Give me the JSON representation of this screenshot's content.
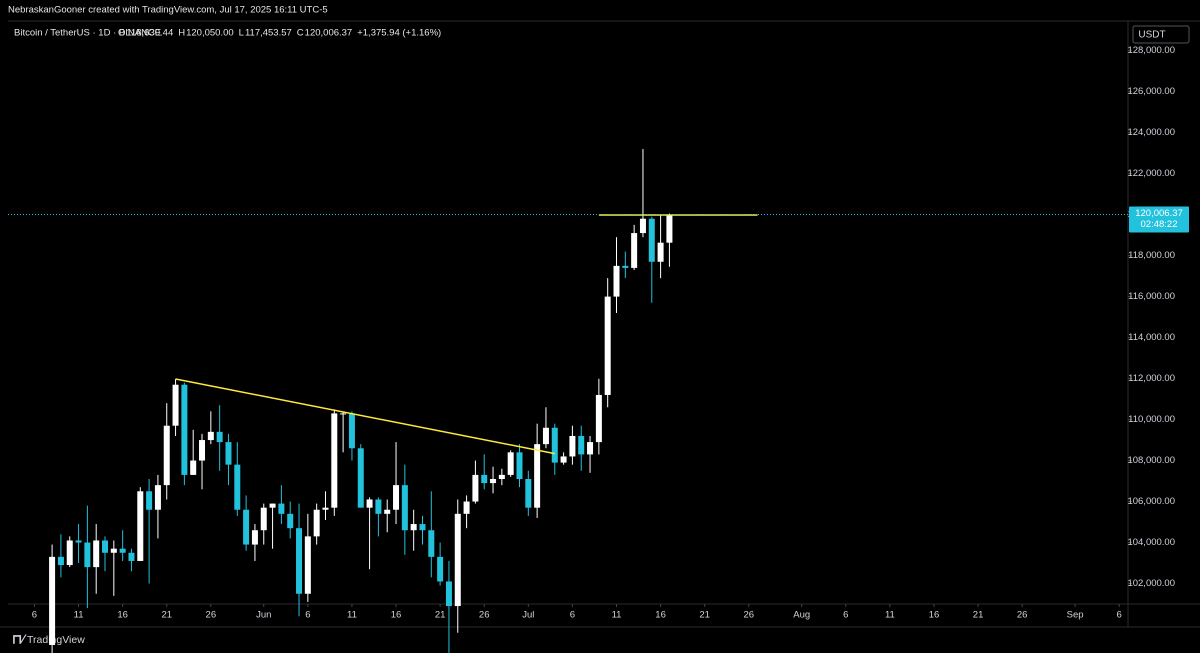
{
  "header": {
    "attribution": "NebraskanGooner created with TradingView.com, Jul 17, 2025 16:11 UTC-5",
    "symbol": "Bitcoin / TetherUS · 1D · BINANCE",
    "ohlc": [
      {
        "key": "O",
        "value": "118,630.44"
      },
      {
        "key": "H",
        "value": "120,050.00"
      },
      {
        "key": "L",
        "value": "117,453.57"
      },
      {
        "key": "C",
        "value": "120,006.37"
      }
    ],
    "change": "+1,375.94 (+1.16%)",
    "currency": "USDT",
    "countdown": "02:48:22"
  },
  "footer": {
    "brand": "TradingView"
  },
  "chart_data": {
    "type": "candlestick",
    "up_color": "#ffffff",
    "down_color": "#22c1dc",
    "x": [
      "2025-05-08",
      "2025-05-09",
      "2025-05-10",
      "2025-05-11",
      "2025-05-12",
      "2025-05-13",
      "2025-05-14",
      "2025-05-15",
      "2025-05-16",
      "2025-05-17",
      "2025-05-18",
      "2025-05-19",
      "2025-05-20",
      "2025-05-21",
      "2025-05-22",
      "2025-05-23",
      "2025-05-24",
      "2025-05-25",
      "2025-05-26",
      "2025-05-27",
      "2025-05-28",
      "2025-05-29",
      "2025-05-30",
      "2025-05-31",
      "2025-06-01",
      "2025-06-02",
      "2025-06-03",
      "2025-06-04",
      "2025-06-05",
      "2025-06-06",
      "2025-06-07",
      "2025-06-08",
      "2025-06-09",
      "2025-06-10",
      "2025-06-11",
      "2025-06-12",
      "2025-06-13",
      "2025-06-14",
      "2025-06-15",
      "2025-06-16",
      "2025-06-17",
      "2025-06-18",
      "2025-06-19",
      "2025-06-20",
      "2025-06-21",
      "2025-06-22",
      "2025-06-23",
      "2025-06-24",
      "2025-06-25",
      "2025-06-26",
      "2025-06-27",
      "2025-06-28",
      "2025-06-29",
      "2025-06-30",
      "2025-07-01",
      "2025-07-02",
      "2025-07-03",
      "2025-07-04",
      "2025-07-05",
      "2025-07-06",
      "2025-07-07",
      "2025-07-08",
      "2025-07-09",
      "2025-07-10",
      "2025-07-11",
      "2025-07-12",
      "2025-07-13",
      "2025-07-14",
      "2025-07-15",
      "2025-07-16",
      "2025-07-17"
    ],
    "open": [
      99000,
      103300,
      102900,
      104100,
      104000,
      102800,
      104100,
      103500,
      103700,
      103500,
      103100,
      106500,
      105600,
      106800,
      109700,
      111700,
      107300,
      108000,
      109000,
      109400,
      108900,
      107800,
      105600,
      103900,
      104600,
      105700,
      105900,
      105400,
      104700,
      101500,
      104300,
      105600,
      105700,
      110300,
      110300,
      108600,
      105700,
      106100,
      105400,
      105600,
      106800,
      104600,
      104900,
      104600,
      103300,
      102100,
      100900,
      105400,
      106000,
      107300,
      106900,
      107100,
      107300,
      108400,
      107100,
      105700,
      108800,
      109600,
      107900,
      108200,
      109200,
      108300,
      108900,
      111200,
      116000,
      117500,
      117400,
      119100,
      119800,
      117700,
      118630.44
    ],
    "high": [
      103900,
      104400,
      104300,
      104900,
      105800,
      104900,
      104300,
      104100,
      104600,
      103700,
      106700,
      107100,
      107300,
      110800,
      111980,
      111800,
      109500,
      109300,
      110400,
      110700,
      109300,
      108900,
      106300,
      104900,
      105900,
      105900,
      106800,
      106000,
      105900,
      105400,
      105900,
      106500,
      110500,
      110400,
      110400,
      108800,
      106200,
      106200,
      106100,
      108900,
      107800,
      105600,
      105300,
      106500,
      104000,
      103100,
      106100,
      106300,
      108000,
      108300,
      107700,
      107600,
      108500,
      108800,
      107500,
      109800,
      110600,
      109800,
      108400,
      109700,
      109700,
      109200,
      111990,
      116900,
      118900,
      118200,
      119500,
      123200,
      119900,
      120000,
      120050
    ],
    "low": [
      98600,
      102300,
      102800,
      103000,
      100800,
      101500,
      102600,
      101400,
      103100,
      102600,
      103100,
      102000,
      104200,
      106100,
      109200,
      106800,
      107300,
      106600,
      108800,
      107500,
      106800,
      105300,
      103600,
      103100,
      103900,
      103700,
      104900,
      104200,
      100400,
      101100,
      103900,
      105100,
      105300,
      108400,
      108000,
      105700,
      102700,
      104300,
      104500,
      104900,
      103400,
      103600,
      103900,
      102300,
      101900,
      98200,
      99600,
      104700,
      105900,
      106600,
      106400,
      106800,
      107200,
      106700,
      105300,
      105200,
      108600,
      107300,
      107800,
      107800,
      107500,
      107400,
      108300,
      110600,
      115200,
      116900,
      117300,
      118900,
      115700,
      116900,
      117453.57
    ],
    "close": [
      103300,
      102900,
      104100,
      104000,
      102800,
      104100,
      103500,
      103700,
      103500,
      103100,
      106500,
      105600,
      106800,
      109700,
      111700,
      107300,
      108000,
      109000,
      109400,
      108900,
      107800,
      105600,
      103900,
      104600,
      105700,
      105900,
      105400,
      104700,
      101500,
      104300,
      105600,
      105700,
      110300,
      110300,
      108600,
      105700,
      106100,
      105400,
      105600,
      106800,
      104600,
      104900,
      104600,
      103300,
      102100,
      100900,
      105400,
      106000,
      107300,
      106900,
      107100,
      107300,
      108400,
      107100,
      105700,
      108800,
      109600,
      107900,
      108200,
      109200,
      108300,
      108900,
      111200,
      116000,
      117500,
      117400,
      119100,
      119800,
      117700,
      118630.44,
      120006.37
    ],
    "xlim": [
      "2025-05-03",
      "2025-09-07"
    ],
    "ylim": [
      101000,
      129400
    ],
    "xticks": [
      {
        "value": "2025-05-06",
        "label": "6"
      },
      {
        "value": "2025-05-11",
        "label": "11"
      },
      {
        "value": "2025-05-16",
        "label": "16"
      },
      {
        "value": "2025-05-21",
        "label": "21"
      },
      {
        "value": "2025-05-26",
        "label": "26"
      },
      {
        "value": "2025-06-01",
        "label": "Jun"
      },
      {
        "value": "2025-06-06",
        "label": "6"
      },
      {
        "value": "2025-06-11",
        "label": "11"
      },
      {
        "value": "2025-06-16",
        "label": "16"
      },
      {
        "value": "2025-06-21",
        "label": "21"
      },
      {
        "value": "2025-06-26",
        "label": "26"
      },
      {
        "value": "2025-07-01",
        "label": "Jul"
      },
      {
        "value": "2025-07-06",
        "label": "6"
      },
      {
        "value": "2025-07-11",
        "label": "11"
      },
      {
        "value": "2025-07-16",
        "label": "16"
      },
      {
        "value": "2025-07-21",
        "label": "21"
      },
      {
        "value": "2025-07-26",
        "label": "26"
      },
      {
        "value": "2025-08-01",
        "label": "Aug"
      },
      {
        "value": "2025-08-06",
        "label": "6"
      },
      {
        "value": "2025-08-11",
        "label": "11"
      },
      {
        "value": "2025-08-16",
        "label": "16"
      },
      {
        "value": "2025-08-21",
        "label": "21"
      },
      {
        "value": "2025-08-26",
        "label": "26"
      },
      {
        "value": "2025-09-01",
        "label": "Sep"
      },
      {
        "value": "2025-09-06",
        "label": "6"
      }
    ],
    "yticks": [
      {
        "value": 102000,
        "label": "102,000.00"
      },
      {
        "value": 104000,
        "label": "104,000.00"
      },
      {
        "value": 106000,
        "label": "106,000.00"
      },
      {
        "value": 108000,
        "label": "108,000.00"
      },
      {
        "value": 110000,
        "label": "110,000.00"
      },
      {
        "value": 112000,
        "label": "112,000.00"
      },
      {
        "value": 114000,
        "label": "114,000.00"
      },
      {
        "value": 116000,
        "label": "116,000.00"
      },
      {
        "value": 118000,
        "label": "118,000.00"
      },
      {
        "value": 120000,
        "label": "120,000.00"
      },
      {
        "value": 122000,
        "label": "122,000.00"
      },
      {
        "value": 124000,
        "label": "124,000.00"
      },
      {
        "value": 126000,
        "label": "126,000.00"
      },
      {
        "value": 128000,
        "label": "128,000.00"
      }
    ],
    "last_price": {
      "value": 120006.37,
      "label": "120,006.37",
      "color": "#22c1dc"
    },
    "trendlines": [
      {
        "color": "#ffeb3b",
        "x": [
          "2025-05-22",
          "2025-07-04"
        ],
        "y": [
          111980,
          108340
        ]
      },
      {
        "color": "#ffeb3b",
        "x": [
          "2025-07-09",
          "2025-07-27"
        ],
        "y": [
          119980,
          119980
        ]
      }
    ]
  }
}
